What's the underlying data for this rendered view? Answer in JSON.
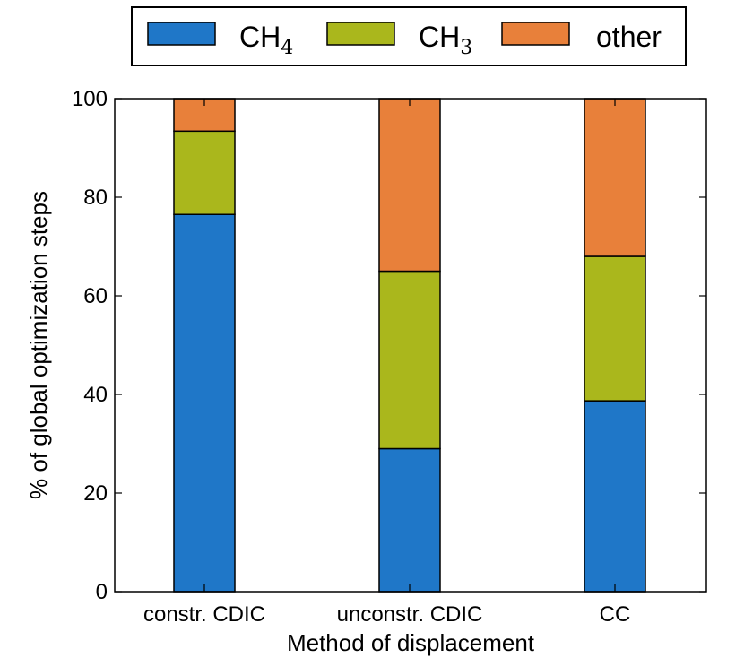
{
  "chart_data": {
    "type": "bar",
    "stacked": true,
    "categories": [
      "constr. CDIC",
      "unconstr. CDIC",
      "CC"
    ],
    "series": [
      {
        "name": "CH",
        "subscript": "4",
        "color": "#1f77c8",
        "values": [
          76.5,
          29.0,
          38.7
        ]
      },
      {
        "name": "CH",
        "subscript": "3",
        "color": "#aab71c",
        "values": [
          16.9,
          36.0,
          29.3
        ]
      },
      {
        "name": "other",
        "subscript": "",
        "color": "#e8803a",
        "values": [
          6.6,
          35.0,
          32.0
        ]
      }
    ],
    "xlabel": "Method of displacement",
    "ylabel": "% of global optimization steps",
    "ylim": [
      0,
      100
    ],
    "yticks": [
      "0",
      "20",
      "40",
      "60",
      "80",
      "100"
    ],
    "ytick_values": [
      0,
      20,
      40,
      60,
      80,
      100
    ],
    "legend_position": "top-center",
    "grid": false
  }
}
